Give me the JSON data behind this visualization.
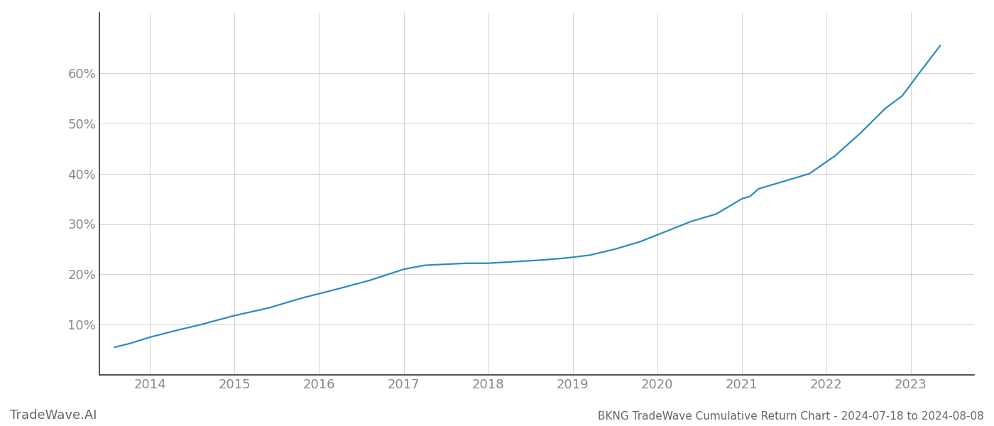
{
  "title": "BKNG TradeWave Cumulative Return Chart - 2024-07-18 to 2024-08-08",
  "watermark": "TradeWave.AI",
  "line_color": "#2b8cbe",
  "background_color": "#ffffff",
  "grid_color": "#cccccc",
  "x_years": [
    2014,
    2015,
    2016,
    2017,
    2018,
    2019,
    2020,
    2021,
    2022,
    2023
  ],
  "data_x": [
    2013.58,
    2013.75,
    2014.0,
    2014.3,
    2014.6,
    2015.0,
    2015.4,
    2015.8,
    2016.2,
    2016.6,
    2017.0,
    2017.25,
    2017.5,
    2017.75,
    2018.0,
    2018.3,
    2018.6,
    2018.9,
    2019.2,
    2019.5,
    2019.8,
    2020.1,
    2020.4,
    2020.7,
    2021.0,
    2021.1,
    2021.2,
    2021.5,
    2021.8,
    2022.1,
    2022.4,
    2022.7,
    2022.9,
    2023.1,
    2023.35
  ],
  "data_y": [
    0.055,
    0.062,
    0.075,
    0.088,
    0.1,
    0.118,
    0.133,
    0.153,
    0.17,
    0.188,
    0.21,
    0.218,
    0.22,
    0.222,
    0.222,
    0.225,
    0.228,
    0.232,
    0.238,
    0.25,
    0.265,
    0.285,
    0.305,
    0.32,
    0.35,
    0.355,
    0.37,
    0.385,
    0.4,
    0.435,
    0.48,
    0.53,
    0.555,
    0.6,
    0.655
  ],
  "ylim": [
    0,
    0.72
  ],
  "xlim": [
    2013.4,
    2023.75
  ],
  "yticks": [
    0.1,
    0.2,
    0.3,
    0.4,
    0.5,
    0.6
  ],
  "ytick_labels": [
    "10%",
    "20%",
    "30%",
    "40%",
    "50%",
    "60%"
  ],
  "title_fontsize": 11,
  "tick_fontsize": 13,
  "watermark_fontsize": 13,
  "line_width": 1.6
}
